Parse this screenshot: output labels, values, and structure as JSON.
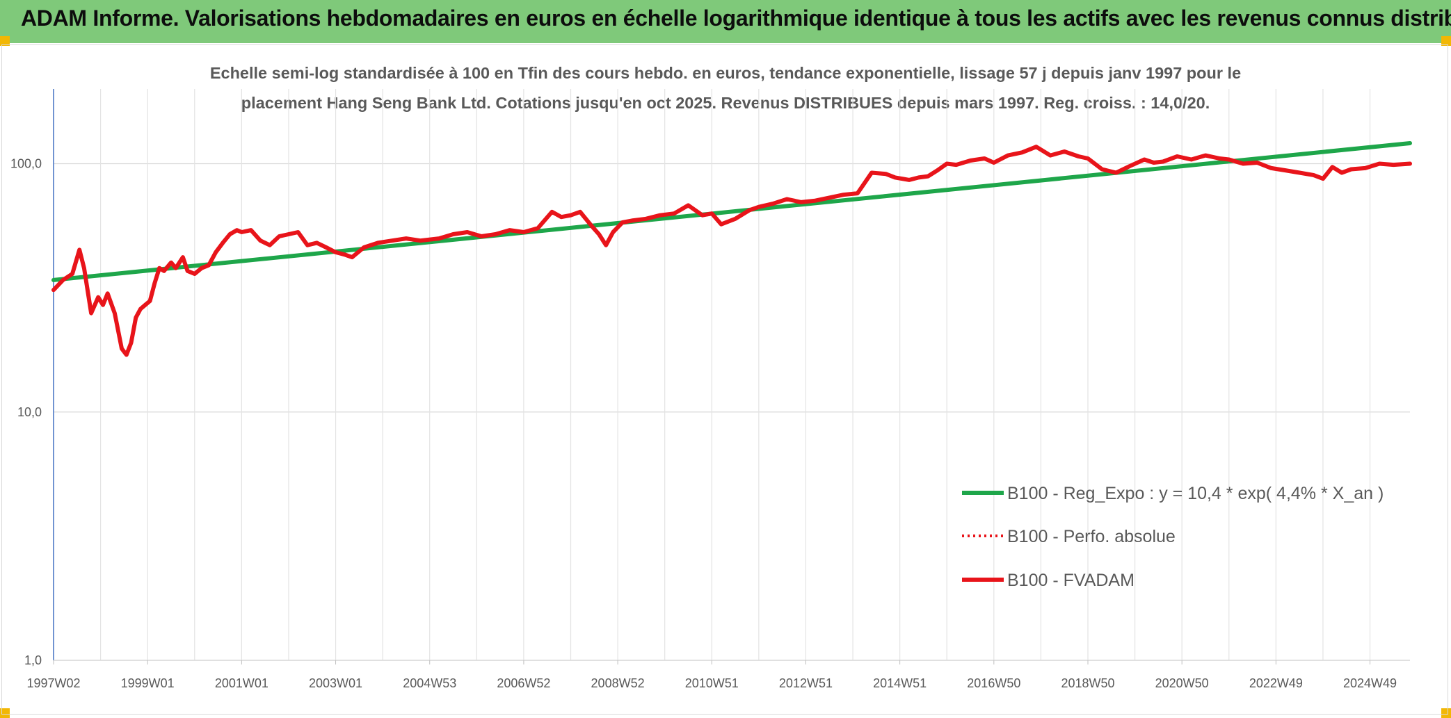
{
  "header": {
    "title": "ADAM Informe. Valorisations hebdomadaires en euros en échelle logarithmique identique à tous les actifs avec les revenus connus distribués"
  },
  "chart_data": {
    "type": "line",
    "subtitle_lines": [
      "Echelle semi-log standardisée à 100 en Tfin des cours hebdo. en euros, tendance exponentielle, lissage 57 j depuis janv 1997 pour le",
      "placement Hang Seng Bank Ltd. Cotations jusqu'en oct 2025. Revenus DISTRIBUES depuis mars 1997. Reg. croiss. : 14,0/20."
    ],
    "y_scale": "log",
    "ylim": [
      1,
      200
    ],
    "y_ticks": [
      {
        "value": 1,
        "label": "1,0"
      },
      {
        "value": 10,
        "label": "10,0"
      },
      {
        "value": 100,
        "label": "100,0"
      }
    ],
    "xlim": [
      1997.0,
      2025.85
    ],
    "x_ticks": [
      {
        "value": 1997.0,
        "label": "1997W02"
      },
      {
        "value": 1999.0,
        "label": "1999W01"
      },
      {
        "value": 2001.0,
        "label": "2001W01"
      },
      {
        "value": 2003.0,
        "label": "2003W01"
      },
      {
        "value": 2005.0,
        "label": "2004W53"
      },
      {
        "value": 2007.0,
        "label": "2006W52"
      },
      {
        "value": 2009.0,
        "label": "2008W52"
      },
      {
        "value": 2011.0,
        "label": "2010W51"
      },
      {
        "value": 2013.0,
        "label": "2012W51"
      },
      {
        "value": 2015.0,
        "label": "2014W51"
      },
      {
        "value": 2017.0,
        "label": "2016W50"
      },
      {
        "value": 2019.0,
        "label": "2018W50"
      },
      {
        "value": 2021.0,
        "label": "2020W50"
      },
      {
        "value": 2023.0,
        "label": "2022W49"
      },
      {
        "value": 2025.0,
        "label": "2024W49"
      }
    ],
    "grid": true,
    "legend_position": "bottom-right",
    "series": [
      {
        "name": "B100 - Reg_Expo : y = 10,4 * exp( 4,4% *  X_an )",
        "color": "#1ea64a",
        "style": "solid",
        "x": [
          1997.0,
          2025.85
        ],
        "y": [
          34,
          121
        ]
      },
      {
        "name": "B100 - Perfo. absolue",
        "color": "#e8141a",
        "style": "dotted",
        "x": [],
        "y": []
      },
      {
        "name": "B100 - FVADAM",
        "color": "#e8141a",
        "style": "solid",
        "x": [
          1997.0,
          1997.2,
          1997.4,
          1997.55,
          1997.65,
          1997.8,
          1997.95,
          1998.05,
          1998.15,
          1998.3,
          1998.45,
          1998.55,
          1998.65,
          1998.75,
          1998.85,
          1998.95,
          1999.05,
          1999.15,
          1999.25,
          1999.35,
          1999.5,
          1999.6,
          1999.75,
          1999.85,
          2000.0,
          2000.15,
          2000.3,
          2000.45,
          2000.6,
          2000.75,
          2000.9,
          2001.0,
          2001.2,
          2001.4,
          2001.6,
          2001.8,
          2002.0,
          2002.2,
          2002.4,
          2002.6,
          2002.8,
          2003.0,
          2003.2,
          2003.35,
          2003.6,
          2003.9,
          2004.2,
          2004.5,
          2004.8,
          2005.2,
          2005.5,
          2005.8,
          2006.1,
          2006.4,
          2006.7,
          2007.0,
          2007.3,
          2007.6,
          2007.8,
          2008.0,
          2008.2,
          2008.45,
          2008.6,
          2008.75,
          2008.9,
          2009.1,
          2009.3,
          2009.6,
          2009.9,
          2010.2,
          2010.5,
          2010.8,
          2011.0,
          2011.2,
          2011.5,
          2011.8,
          2012.0,
          2012.3,
          2012.6,
          2012.9,
          2013.2,
          2013.5,
          2013.8,
          2014.1,
          2014.4,
          2014.7,
          2014.9,
          2015.2,
          2015.4,
          2015.6,
          2015.8,
          2016.0,
          2016.2,
          2016.5,
          2016.8,
          2017.0,
          2017.3,
          2017.6,
          2017.9,
          2018.2,
          2018.5,
          2018.8,
          2019.0,
          2019.3,
          2019.6,
          2019.9,
          2020.2,
          2020.4,
          2020.6,
          2020.9,
          2021.2,
          2021.5,
          2021.8,
          2022.0,
          2022.3,
          2022.6,
          2022.9,
          2023.2,
          2023.5,
          2023.8,
          2024.0,
          2024.2,
          2024.4,
          2024.6,
          2024.9,
          2025.2,
          2025.5,
          2025.85
        ],
        "y": [
          31,
          34,
          36,
          45,
          38,
          25,
          29,
          27,
          30,
          25,
          18,
          17,
          19,
          24,
          26,
          27,
          28,
          33,
          38,
          37,
          40,
          38,
          42,
          37,
          36,
          38,
          39,
          44,
          48,
          52,
          54,
          53,
          54,
          49,
          47,
          51,
          52,
          53,
          47,
          48,
          46,
          44,
          43,
          42,
          46,
          48,
          49,
          50,
          49,
          50,
          52,
          53,
          51,
          52,
          54,
          53,
          55,
          64,
          61,
          62,
          64,
          56,
          52,
          47,
          53,
          58,
          59,
          60,
          62,
          63,
          68,
          62,
          63,
          57,
          60,
          65,
          67,
          69,
          72,
          70,
          71,
          73,
          75,
          76,
          92,
          91,
          88,
          86,
          88,
          89,
          94,
          100,
          99,
          103,
          105,
          101,
          108,
          111,
          117,
          108,
          112,
          107,
          105,
          95,
          92,
          98,
          104,
          101,
          102,
          107,
          104,
          108,
          105,
          104,
          100,
          101,
          96,
          94,
          92,
          90,
          87,
          97,
          92,
          95,
          96,
          100,
          99,
          100
        ]
      }
    ]
  }
}
